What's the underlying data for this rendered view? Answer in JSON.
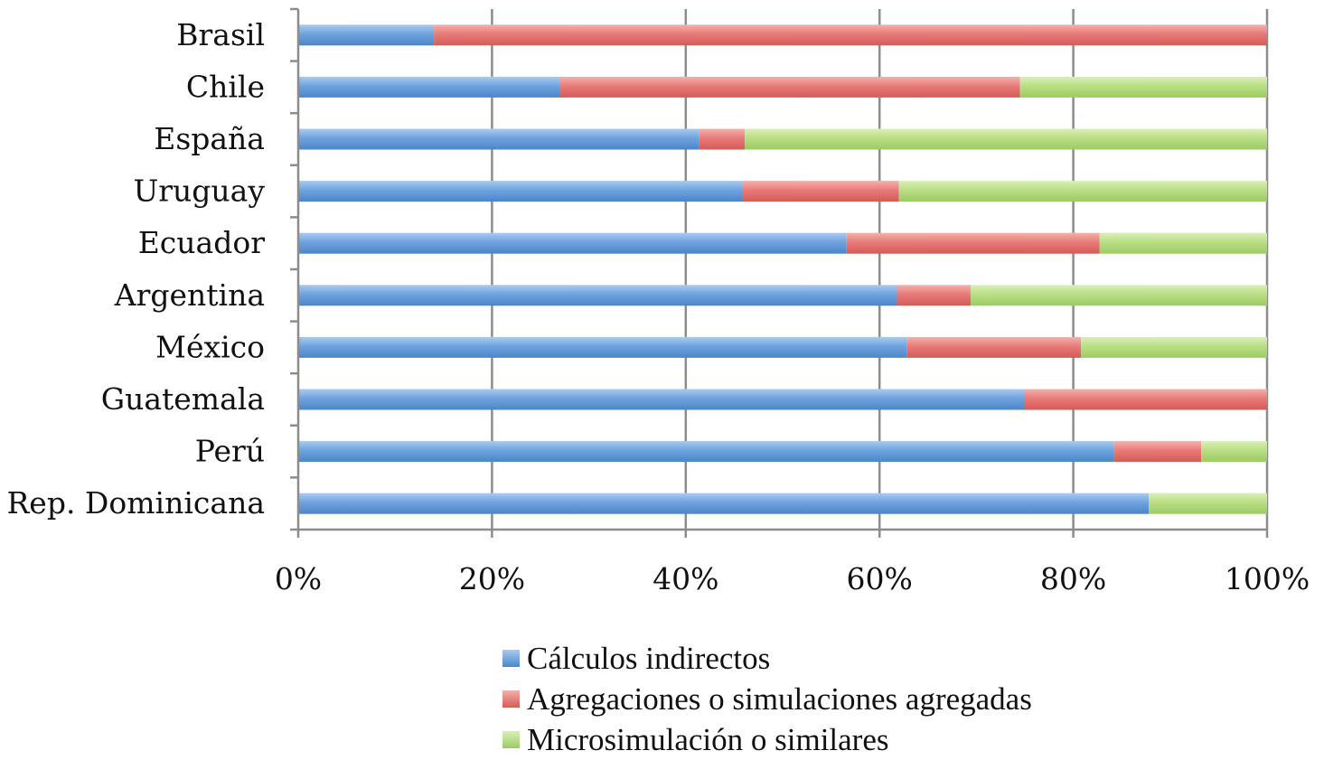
{
  "chart_data": {
    "type": "bar",
    "orientation": "horizontal",
    "stacked": "percent",
    "categories": [
      "Brasil",
      "Chile",
      "España",
      "Uruguay",
      "Ecuador",
      "Argentina",
      "México",
      "Guatemala",
      "Perú",
      "Rep. Dominicana"
    ],
    "series": [
      {
        "name": "Cálculos indirectos",
        "color": "#6fa3de",
        "values": [
          14,
          27,
          41.4,
          45.9,
          56.6,
          61.8,
          62.8,
          75,
          84.2,
          87.8
        ]
      },
      {
        "name": "Agregaciones o simulaciones agregadas",
        "color": "#e87b78",
        "values": [
          86,
          47.5,
          4.7,
          16.1,
          26.1,
          7.6,
          18,
          25,
          9,
          0
        ]
      },
      {
        "name": "Microsimulación o similares",
        "color": "#b9de84",
        "values": [
          0,
          25.5,
          53.9,
          38,
          17.3,
          30.6,
          19.2,
          0,
          6.8,
          12.2
        ]
      }
    ],
    "xlim": [
      0,
      100
    ],
    "x_ticks": [
      "0%",
      "20%",
      "40%",
      "60%",
      "80%",
      "100%"
    ],
    "grid": true,
    "legend_position": "bottom"
  }
}
